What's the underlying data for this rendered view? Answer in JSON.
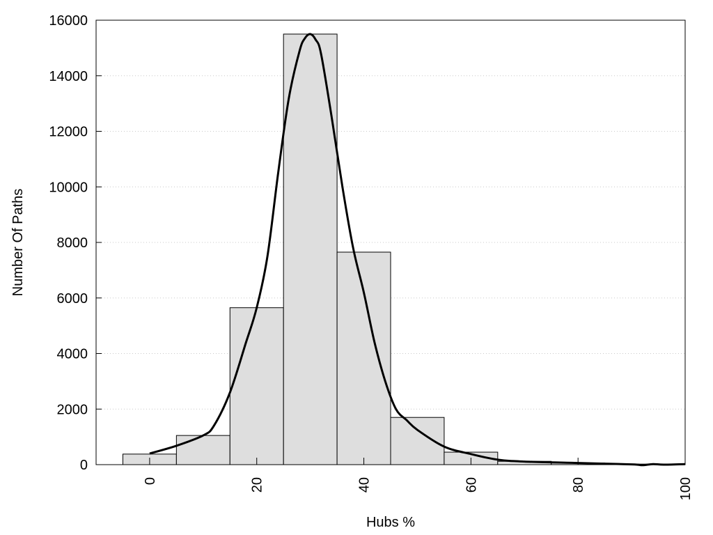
{
  "chart_data": {
    "type": "bar",
    "title": "",
    "xlabel": "Hubs %",
    "ylabel": "Number Of Paths",
    "xlim": [
      -10,
      100
    ],
    "ylim": [
      0,
      16000
    ],
    "x_ticks": [
      0,
      20,
      40,
      60,
      80,
      100
    ],
    "y_ticks": [
      0,
      2000,
      4000,
      6000,
      8000,
      10000,
      12000,
      14000,
      16000
    ],
    "grid": "horizontal dotted",
    "bar_width": 10,
    "bars": [
      {
        "x": 0,
        "value": 380
      },
      {
        "x": 10,
        "value": 1050
      },
      {
        "x": 20,
        "value": 5650
      },
      {
        "x": 30,
        "value": 15500
      },
      {
        "x": 40,
        "value": 7650
      },
      {
        "x": 50,
        "value": 1700
      },
      {
        "x": 60,
        "value": 450
      },
      {
        "x": 70,
        "value": 120
      },
      {
        "x": 80,
        "value": 60
      },
      {
        "x": 90,
        "value": 20
      },
      {
        "x": 100,
        "value": 10
      }
    ],
    "density_curve": {
      "x": [
        0,
        5,
        10,
        12,
        15,
        18,
        20,
        22,
        24,
        26,
        28,
        29,
        30,
        31,
        32,
        34,
        36,
        38,
        40,
        42,
        44,
        46,
        48,
        50,
        55,
        60,
        65,
        70,
        80,
        90,
        92,
        94,
        96,
        100
      ],
      "y": [
        400,
        680,
        1050,
        1400,
        2600,
        4400,
        5650,
        7500,
        10500,
        13200,
        14900,
        15350,
        15500,
        15300,
        14800,
        12500,
        10000,
        7800,
        6200,
        4400,
        3000,
        2000,
        1600,
        1250,
        650,
        380,
        180,
        110,
        60,
        10,
        -20,
        20,
        0,
        20
      ],
      "color": "#000000"
    },
    "bar_color": "#dedede",
    "bar_edge_color": "#000000"
  }
}
